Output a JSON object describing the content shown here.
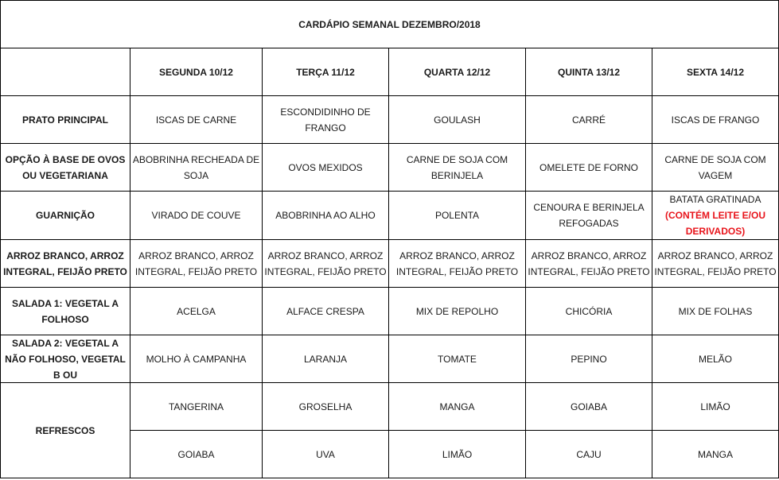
{
  "title": "CARDÁPIO SEMANAL DEZEMBRO/2018",
  "days": [
    "SEGUNDA   10/12",
    "TERÇA 11/12",
    "QUARTA 12/12",
    "QUINTA 13/12",
    "SEXTA 14/12"
  ],
  "rows": [
    {
      "label": "PRATO PRINCIPAL",
      "cells": [
        "ISCAS DE CARNE",
        "ESCONDIDINHO  DE FRANGO",
        "GOULASH",
        "CARRÉ",
        "ISCAS DE FRANGO"
      ]
    },
    {
      "label": "OPÇÃO À BASE DE OVOS OU VEGETARIANA",
      "cells": [
        "ABOBRINHA RECHEADA DE SOJA",
        "OVOS MEXIDOS",
        "CARNE DE SOJA COM BERINJELA",
        "OMELETE DE FORNO",
        "CARNE DE SOJA COM VAGEM"
      ]
    },
    {
      "label": "GUARNIÇÃO",
      "cells": [
        "VIRADO DE COUVE",
        "ABOBRINHA AO ALHO",
        "POLENTA",
        "CENOURA E BERINJELA REFOGADAS",
        "BATATA GRATINADA"
      ]
    },
    {
      "label": "ARROZ BRANCO, ARROZ INTEGRAL, FEIJÃO PRETO",
      "cells": [
        "ARROZ BRANCO, ARROZ INTEGRAL, FEIJÃO PRETO",
        "ARROZ BRANCO, ARROZ INTEGRAL, FEIJÃO PRETO",
        "ARROZ BRANCO, ARROZ INTEGRAL, FEIJÃO PRETO",
        "ARROZ BRANCO, ARROZ INTEGRAL, FEIJÃO PRETO",
        "ARROZ BRANCO, ARROZ INTEGRAL, FEIJÃO PRETO"
      ]
    },
    {
      "label": "SALADA 1: VEGETAL A FOLHOSO",
      "cells": [
        "ACELGA",
        "ALFACE CRESPA",
        "MIX DE REPOLHO",
        "CHICÓRIA",
        "MIX DE FOLHAS"
      ]
    },
    {
      "label": "SALADA 2: VEGETAL A NÃO FOLHOSO, VEGETAL B OU",
      "cells": [
        "MOLHO À CAMPANHA",
        "LARANJA",
        "TOMATE",
        "PEPINO",
        "MELÃO"
      ]
    }
  ],
  "warning": "(CONTÉM LEITE E/OU DERIVADOS)",
  "warning_color": "#e8141b",
  "refrescos": {
    "label": "REFRESCOS",
    "row1": [
      "TANGERINA",
      "GROSELHA",
      "MANGA",
      "GOIABA",
      "LIMÃO"
    ],
    "row2": [
      "GOIABA",
      "UVA",
      "LIMÃO",
      "CAJU",
      "MANGA"
    ]
  }
}
